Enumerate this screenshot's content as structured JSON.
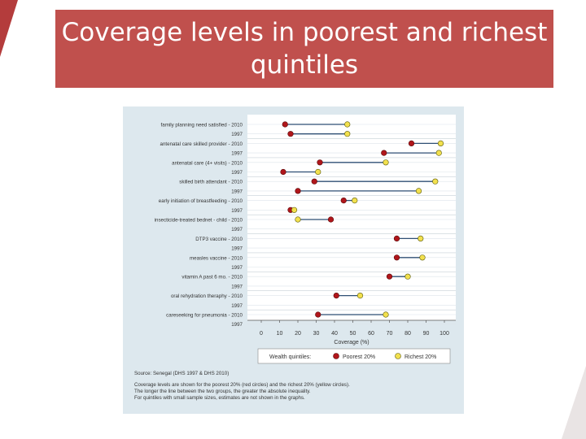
{
  "slide": {
    "title": "Coverage levels in poorest and richest\nquintiles",
    "title_bg": "#c0504d",
    "accent": "#b43c3c"
  },
  "chart_data": {
    "type": "dumbbell",
    "xlabel": "Coverage (%)",
    "xlim": [
      0,
      100
    ],
    "xticks": [
      0,
      10,
      20,
      30,
      40,
      50,
      60,
      70,
      80,
      90,
      100
    ],
    "legend": {
      "title": "Wealth quintiles:",
      "poorest_label": "Poorest 20%",
      "richest_label": "Richest 20%",
      "poorest_color": "#b0161b",
      "richest_color": "#f2e04e"
    },
    "indicators": [
      {
        "name": "family planning need satisfied",
        "rows": [
          {
            "year": "2010",
            "poorest": 13,
            "richest": 47
          },
          {
            "year": "1997",
            "poorest": 16,
            "richest": 47
          }
        ]
      },
      {
        "name": "antenatal care skilled provider",
        "rows": [
          {
            "year": "2010",
            "poorest": 82,
            "richest": 98
          },
          {
            "year": "1997",
            "poorest": 67,
            "richest": 97
          }
        ]
      },
      {
        "name": "antenatal care (4+ visits)",
        "rows": [
          {
            "year": "2010",
            "poorest": 32,
            "richest": 68
          },
          {
            "year": "1997",
            "poorest": 12,
            "richest": 31
          }
        ]
      },
      {
        "name": "skilled birth attendant",
        "rows": [
          {
            "year": "2010",
            "poorest": 29,
            "richest": 95
          },
          {
            "year": "1997",
            "poorest": 20,
            "richest": 86
          }
        ]
      },
      {
        "name": "early initiation of breastfeeding",
        "rows": [
          {
            "year": "2010",
            "poorest": 45,
            "richest": 51
          },
          {
            "year": "1997",
            "poorest": 16,
            "richest": 18
          }
        ]
      },
      {
        "name": "insecticide-treated bednet - child",
        "rows": [
          {
            "year": "2010",
            "poorest": 38,
            "richest": 20
          },
          {
            "year": "1997",
            "poorest": null,
            "richest": null
          }
        ]
      },
      {
        "name": "DTP3 vaccine",
        "rows": [
          {
            "year": "2010",
            "poorest": 74,
            "richest": 87
          },
          {
            "year": "1997",
            "poorest": null,
            "richest": null
          }
        ]
      },
      {
        "name": "measles vaccine",
        "rows": [
          {
            "year": "2010",
            "poorest": 74,
            "richest": 88
          },
          {
            "year": "1997",
            "poorest": null,
            "richest": null
          }
        ]
      },
      {
        "name": "vitamin A past 6 mo.",
        "rows": [
          {
            "year": "2010",
            "poorest": 70,
            "richest": 80
          },
          {
            "year": "1997",
            "poorest": null,
            "richest": null
          }
        ]
      },
      {
        "name": "oral rehydration theraphy",
        "rows": [
          {
            "year": "2010",
            "poorest": 41,
            "richest": 54
          },
          {
            "year": "1997",
            "poorest": null,
            "richest": null
          }
        ]
      },
      {
        "name": "careseeking for pneumonia",
        "rows": [
          {
            "year": "2010",
            "poorest": 31,
            "richest": 68
          },
          {
            "year": "1997",
            "poorest": null,
            "richest": null
          }
        ]
      }
    ],
    "notes": [
      "Source: Senegal (DHS 1997 & DHS 2010)",
      "Coverage levels are shown for the poorest 20% (red circles) and the richest 20% (yellow circles).",
      "The longer the line between the two groups, the greater the absolute inequality.",
      "For quintiles with small sample sizes, estimates are not shown in the graphs."
    ]
  }
}
